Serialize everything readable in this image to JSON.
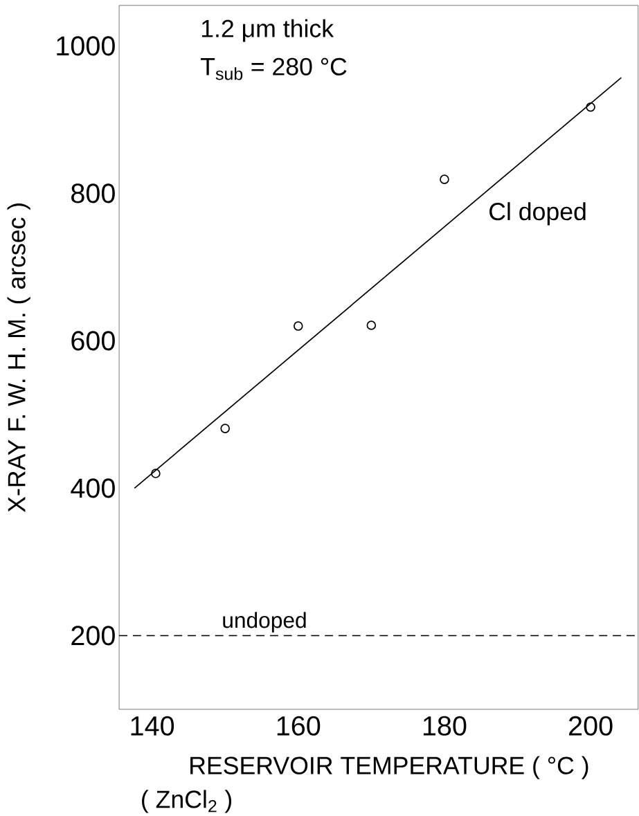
{
  "chart_data": {
    "type": "scatter",
    "xlabel": "RESERVOIR TEMPERATURE ( °C )",
    "ylabel": "X-RAY   F. W. H. M.   ( arcsec )",
    "annotations": [
      "1.2 μm thick",
      "T$_{sub}$ = 280 °C",
      "Cl doped",
      "( ZnCl$_{2}$ )"
    ],
    "xlim": [
      135.5,
      206.5
    ],
    "ylim": [
      100,
      1055
    ],
    "xticks": [
      140,
      160,
      180,
      200
    ],
    "yticks": [
      200,
      400,
      600,
      800,
      1000
    ],
    "series": [
      {
        "color": "#000000",
        "marker": "circle",
        "x": [
          140.5,
          150,
          160,
          170,
          180,
          200
        ],
        "values": [
          420,
          481,
          620,
          621,
          819,
          917
        ]
      },
      {
        "type": "line",
        "color": "#000000",
        "marker": "none",
        "line_style": "solid",
        "x": [
          137.6,
          204.2
        ],
        "values": [
          400,
          957
        ]
      }
    ],
    "ref_lines": [
      {
        "axis": "y",
        "value": 200,
        "label": "undoped",
        "line_style": "dashed"
      }
    ],
    "grid": false
  }
}
